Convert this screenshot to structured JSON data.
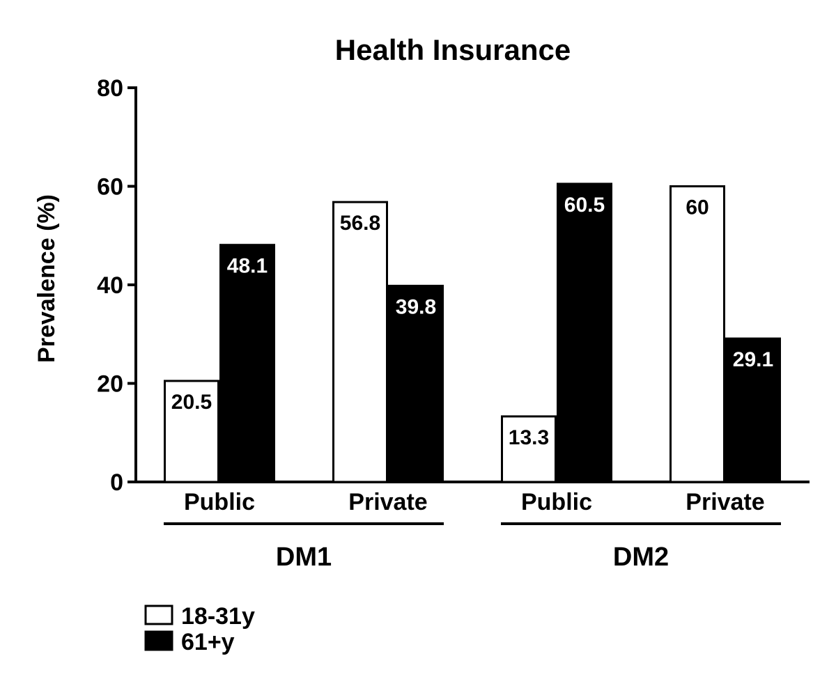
{
  "chart_data": {
    "type": "bar",
    "title": "Health Insurance",
    "xlabel": "",
    "ylabel": "Prevalence (%)",
    "ylim": [
      0,
      80
    ],
    "yticks": [
      0,
      20,
      40,
      60,
      80
    ],
    "categories": [
      "Public",
      "Private",
      "Public",
      "Private"
    ],
    "groups": [
      {
        "label": "DM1",
        "categories": [
          "Public",
          "Private"
        ]
      },
      {
        "label": "DM2",
        "categories": [
          "Public",
          "Private"
        ]
      }
    ],
    "series": [
      {
        "name": "18-31y",
        "color": "#ffffff",
        "values": [
          20.5,
          56.8,
          13.3,
          60
        ],
        "labels": [
          "20.5",
          "56.8",
          "13.3",
          "60"
        ]
      },
      {
        "name": "61+y",
        "color": "#000000",
        "values": [
          48.1,
          39.8,
          60.5,
          29.1
        ],
        "labels": [
          "48.1",
          "39.8",
          "60.5",
          "29.1"
        ]
      }
    ],
    "legend": "bottom-left",
    "grid": false
  }
}
